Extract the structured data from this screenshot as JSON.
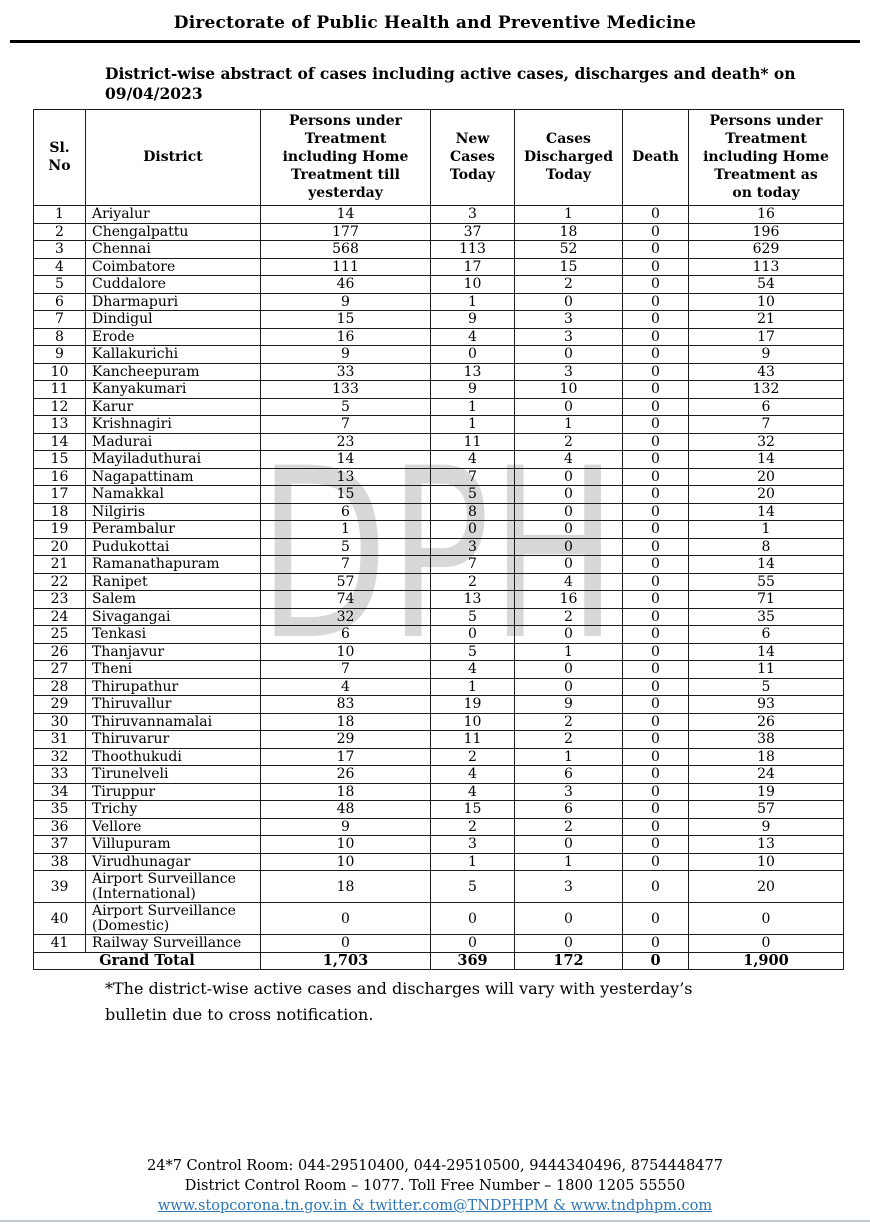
{
  "page": {
    "org_title": "Directorate of Public Health and Preventive Medicine",
    "subtitle": "District-wise abstract of cases including active cases, discharges and death* on 09/04/2023",
    "watermark": "DPH"
  },
  "table": {
    "columns": [
      "Sl.\nNo",
      "District",
      "Persons under\nTreatment\nincluding Home\nTreatment till\nyesterday",
      "New\nCases\nToday",
      "Cases\nDischarged\nToday",
      "Death",
      "Persons under\nTreatment\nincluding Home\nTreatment as\non today"
    ],
    "rows": [
      [
        "1",
        "Ariyalur",
        "14",
        "3",
        "1",
        "0",
        "16"
      ],
      [
        "2",
        "Chengalpattu",
        "177",
        "37",
        "18",
        "0",
        "196"
      ],
      [
        "3",
        "Chennai",
        "568",
        "113",
        "52",
        "0",
        "629"
      ],
      [
        "4",
        "Coimbatore",
        "111",
        "17",
        "15",
        "0",
        "113"
      ],
      [
        "5",
        "Cuddalore",
        "46",
        "10",
        "2",
        "0",
        "54"
      ],
      [
        "6",
        "Dharmapuri",
        "9",
        "1",
        "0",
        "0",
        "10"
      ],
      [
        "7",
        "Dindigul",
        "15",
        "9",
        "3",
        "0",
        "21"
      ],
      [
        "8",
        "Erode",
        "16",
        "4",
        "3",
        "0",
        "17"
      ],
      [
        "9",
        "Kallakurichi",
        "9",
        "0",
        "0",
        "0",
        "9"
      ],
      [
        "10",
        "Kancheepuram",
        "33",
        "13",
        "3",
        "0",
        "43"
      ],
      [
        "11",
        "Kanyakumari",
        "133",
        "9",
        "10",
        "0",
        "132"
      ],
      [
        "12",
        "Karur",
        "5",
        "1",
        "0",
        "0",
        "6"
      ],
      [
        "13",
        "Krishnagiri",
        "7",
        "1",
        "1",
        "0",
        "7"
      ],
      [
        "14",
        "Madurai",
        "23",
        "11",
        "2",
        "0",
        "32"
      ],
      [
        "15",
        "Mayiladuthurai",
        "14",
        "4",
        "4",
        "0",
        "14"
      ],
      [
        "16",
        "Nagapattinam",
        "13",
        "7",
        "0",
        "0",
        "20"
      ],
      [
        "17",
        "Namakkal",
        "15",
        "5",
        "0",
        "0",
        "20"
      ],
      [
        "18",
        "Nilgiris",
        "6",
        "8",
        "0",
        "0",
        "14"
      ],
      [
        "19",
        "Perambalur",
        "1",
        "0",
        "0",
        "0",
        "1"
      ],
      [
        "20",
        "Pudukottai",
        "5",
        "3",
        "0",
        "0",
        "8"
      ],
      [
        "21",
        "Ramanathapuram",
        "7",
        "7",
        "0",
        "0",
        "14"
      ],
      [
        "22",
        "Ranipet",
        "57",
        "2",
        "4",
        "0",
        "55"
      ],
      [
        "23",
        "Salem",
        "74",
        "13",
        "16",
        "0",
        "71"
      ],
      [
        "24",
        "Sivagangai",
        "32",
        "5",
        "2",
        "0",
        "35"
      ],
      [
        "25",
        "Tenkasi",
        "6",
        "0",
        "0",
        "0",
        "6"
      ],
      [
        "26",
        "Thanjavur",
        "10",
        "5",
        "1",
        "0",
        "14"
      ],
      [
        "27",
        "Theni",
        "7",
        "4",
        "0",
        "0",
        "11"
      ],
      [
        "28",
        "Thirupathur",
        "4",
        "1",
        "0",
        "0",
        "5"
      ],
      [
        "29",
        "Thiruvallur",
        "83",
        "19",
        "9",
        "0",
        "93"
      ],
      [
        "30",
        "Thiruvannamalai",
        "18",
        "10",
        "2",
        "0",
        "26"
      ],
      [
        "31",
        "Thiruvarur",
        "29",
        "11",
        "2",
        "0",
        "38"
      ],
      [
        "32",
        "Thoothukudi",
        "17",
        "2",
        "1",
        "0",
        "18"
      ],
      [
        "33",
        "Tirunelveli",
        "26",
        "4",
        "6",
        "0",
        "24"
      ],
      [
        "34",
        "Tiruppur",
        "18",
        "4",
        "3",
        "0",
        "19"
      ],
      [
        "35",
        "Trichy",
        "48",
        "15",
        "6",
        "0",
        "57"
      ],
      [
        "36",
        "Vellore",
        "9",
        "2",
        "2",
        "0",
        "9"
      ],
      [
        "37",
        "Villupuram",
        "10",
        "3",
        "0",
        "0",
        "13"
      ],
      [
        "38",
        "Virudhunagar",
        "10",
        "1",
        "1",
        "0",
        "10"
      ],
      [
        "39",
        "Airport Surveillance (International)",
        "18",
        "5",
        "3",
        "0",
        "20"
      ],
      [
        "40",
        "Airport Surveillance (Domestic)",
        "0",
        "0",
        "0",
        "0",
        "0"
      ],
      [
        "41",
        "Railway Surveillance",
        "0",
        "0",
        "0",
        "0",
        "0"
      ]
    ],
    "grand_total": {
      "label": "Grand Total",
      "values": [
        "1,703",
        "369",
        "172",
        "0",
        "1,900"
      ]
    }
  },
  "footnote": "*The district-wise active cases and discharges will vary with yesterday’s bulletin due to cross notification.",
  "footer": {
    "line1": "24*7 Control Room: 044-29510400, 044-29510500, 9444340496, 8754448477",
    "line2": "District Control Room – 1077. Toll Free Number – 1800 1205 55550",
    "links": [
      "www.stopcorona.tn.gov.in",
      "twitter.com@TNDPHPM",
      "www.tndphpm.com"
    ],
    "amp": "&",
    "link_color": "#2E75B6"
  }
}
